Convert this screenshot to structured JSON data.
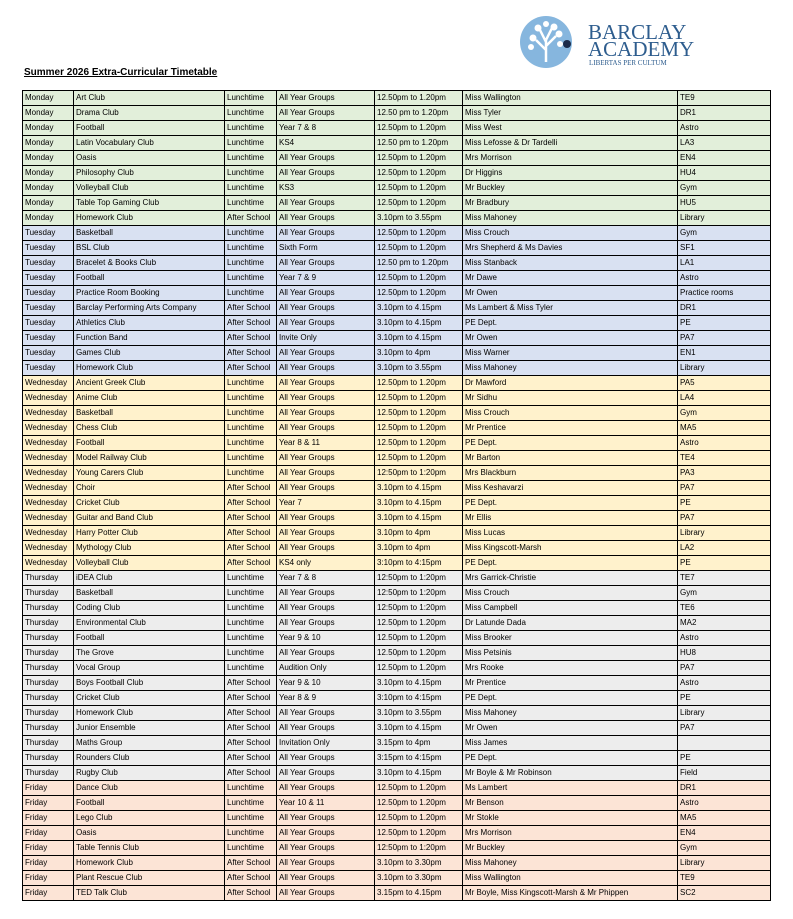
{
  "header": {
    "logo_lines": [
      "BARCLAY",
      "ACADEMY"
    ],
    "motto": "LIBERTAS PER CULTUM"
  },
  "title": "Summer 2026 Extra-Curricular Timetable",
  "table": {
    "rows": [
      [
        "Monday",
        "Art Club",
        "Lunchtime",
        "All Year Groups",
        "12.50pm to 1.20pm",
        "Miss Wallington",
        "TE9"
      ],
      [
        "Monday",
        "Drama Club",
        "Lunchtime",
        "All Year Groups",
        "12.50 pm to 1.20pm",
        "Miss Tyler",
        "DR1"
      ],
      [
        "Monday",
        "Football",
        "Lunchtime",
        "Year 7 & 8",
        "12.50pm to 1.20pm",
        "Miss West",
        "Astro"
      ],
      [
        "Monday",
        "Latin Vocabulary Club",
        "Lunchtime",
        "KS4",
        "12.50 pm to 1.20pm",
        "Miss Lefosse & Dr Tardelli",
        "LA3"
      ],
      [
        "Monday",
        "Oasis",
        "Lunchtime",
        "All Year Groups",
        "12.50pm to 1.20pm",
        "Mrs Morrison",
        "EN4"
      ],
      [
        "Monday",
        "Philosophy Club",
        "Lunchtime",
        "All Year Groups",
        "12.50pm to 1.20pm",
        "Dr Higgins",
        "HU4"
      ],
      [
        "Monday",
        "Volleyball Club",
        "Lunchtime",
        "KS3",
        "12.50pm to 1.20pm",
        "Mr Buckley",
        "Gym"
      ],
      [
        "Monday",
        "Table Top Gaming Club",
        "Lunchtime",
        "All Year Groups",
        "12.50pm to 1.20pm",
        "Mr Bradbury",
        "HU5"
      ],
      [
        "Monday",
        "Homework Club",
        "After School",
        "All Year Groups",
        "3.10pm to 3.55pm",
        "Miss Mahoney",
        "Library"
      ],
      [
        "Tuesday",
        "Basketball",
        "Lunchtime",
        "All Year Groups",
        "12.50pm to 1.20pm",
        "Miss Crouch",
        "Gym"
      ],
      [
        "Tuesday",
        "BSL Club",
        "Lunchtime",
        "Sixth Form",
        "12.50pm to 1.20pm",
        "Mrs Shepherd & Ms Davies",
        "SF1"
      ],
      [
        "Tuesday",
        "Bracelet & Books Club",
        "Lunchtime",
        "All Year Groups",
        "12.50 pm to 1.20pm",
        "Miss Stanback",
        "LA1"
      ],
      [
        "Tuesday",
        "Football",
        "Lunchtime",
        "Year 7 & 9",
        "12.50pm to 1.20pm",
        "Mr Dawe",
        "Astro"
      ],
      [
        "Tuesday",
        "Practice Room Booking",
        "Lunchtime",
        "All Year Groups",
        "12.50pm to 1.20pm",
        "Mr Owen",
        "Practice rooms"
      ],
      [
        "Tuesday",
        "Barclay Performing Arts Company",
        "After School",
        "All Year Groups",
        "3.10pm to 4.15pm",
        "Ms Lambert & Miss Tyler",
        "DR1"
      ],
      [
        "Tuesday",
        "Athletics Club",
        "After School",
        "All Year Groups",
        "3.10pm to 4.15pm",
        "PE Dept.",
        "PE"
      ],
      [
        "Tuesday",
        "Function Band",
        "After School",
        "Invite Only",
        "3.10pm to 4.15pm",
        "Mr Owen",
        "PA7"
      ],
      [
        "Tuesday",
        "Games Club",
        "After School",
        "All Year Groups",
        "3.10pm to 4pm",
        "Miss Warner",
        "EN1"
      ],
      [
        "Tuesday",
        "Homework Club",
        "After School",
        "All Year Groups",
        "3.10pm to 3.55pm",
        "Miss Mahoney",
        "Library"
      ],
      [
        "Wednesday",
        "Ancient Greek Club",
        "Lunchtime",
        "All Year Groups",
        "12.50pm to 1.20pm",
        "Dr Mawford",
        "PA5"
      ],
      [
        "Wednesday",
        "Anime Club",
        "Lunchtime",
        "All Year Groups",
        "12.50pm to 1.20pm",
        "Mr Sidhu",
        "LA4"
      ],
      [
        "Wednesday",
        "Basketball",
        "Lunchtime",
        "All Year Groups",
        "12.50pm to 1.20pm",
        "Miss Crouch",
        "Gym"
      ],
      [
        "Wednesday",
        "Chess Club",
        "Lunchtime",
        "All Year Groups",
        "12.50pm to 1.20pm",
        "Mr Prentice",
        "MA5"
      ],
      [
        "Wednesday",
        "Football",
        "Lunchtime",
        "Year 8 & 11",
        "12.50pm to 1.20pm",
        "PE Dept.",
        "Astro"
      ],
      [
        "Wednesday",
        "Model Railway Club",
        "Lunchtime",
        "All Year Groups",
        "12.50pm to 1.20pm",
        "Mr Barton",
        "TE4"
      ],
      [
        "Wednesday",
        "Young Carers Club",
        "Lunchtime",
        "All Year Groups",
        "12:50pm to 1:20pm",
        "Mrs Blackburn",
        "PA3"
      ],
      [
        "Wednesday",
        "Choir",
        "After School",
        "All Year Groups",
        "3.10pm to 4.15pm",
        "Miss Keshavarzi",
        "PA7"
      ],
      [
        "Wednesday",
        "Cricket Club",
        "After School",
        "Year 7",
        "3.10pm to 4.15pm",
        "PE Dept.",
        "PE"
      ],
      [
        "Wednesday",
        "Guitar and Band Club",
        "After School",
        "All Year Groups",
        "3.10pm to 4.15pm",
        "Mr Ellis",
        "PA7"
      ],
      [
        "Wednesday",
        "Harry Potter Club",
        "After School",
        "All Year Groups",
        "3.10pm to 4pm",
        "Miss Lucas",
        "Library"
      ],
      [
        "Wednesday",
        "Mythology Club",
        "After School",
        "All Year Groups",
        "3.10pm to 4pm",
        "Miss Kingscott-Marsh",
        "LA2"
      ],
      [
        "Wednesday",
        "Volleyball Club",
        "After School",
        "KS4 only",
        "3:10pm to 4:15pm",
        "PE Dept.",
        "PE"
      ],
      [
        "Thursday",
        "iDEA Club",
        "Lunchtime",
        "Year 7 & 8",
        "12:50pm to 1:20pm",
        "Mrs Garrick-Christie",
        "TE7"
      ],
      [
        "Thursday",
        "Basketball",
        "Lunchtime",
        "All Year Groups",
        "12:50pm to 1:20pm",
        "Miss Crouch",
        "Gym"
      ],
      [
        "Thursday",
        "Coding Club",
        "Lunchtime",
        "All Year Groups",
        "12:50pm to 1:20pm",
        "Miss Campbell",
        "TE6"
      ],
      [
        "Thursday",
        "Environmental Club",
        "Lunchtime",
        "All Year Groups",
        "12.50pm to 1.20pm",
        "Dr Latunde Dada",
        "MA2"
      ],
      [
        "Thursday",
        "Football",
        "Lunchtime",
        "Year 9 & 10",
        "12.50pm to 1.20pm",
        "Miss Brooker",
        "Astro"
      ],
      [
        "Thursday",
        "The Grove",
        "Lunchtime",
        "All Year Groups",
        "12.50pm to 1.20pm",
        "Miss Petsinis",
        "HU8"
      ],
      [
        "Thursday",
        "Vocal Group",
        "Lunchtime",
        "Audition Only",
        "12.50pm to 1.20pm",
        "Mrs Rooke",
        "PA7"
      ],
      [
        "Thursday",
        "Boys Football Club",
        "After School",
        "Year 9 & 10",
        "3.10pm to 4.15pm",
        "Mr Prentice",
        "Astro"
      ],
      [
        "Thursday",
        "Cricket Club",
        "After School",
        "Year 8 & 9",
        "3:10pm to 4:15pm",
        "PE Dept.",
        "PE"
      ],
      [
        "Thursday",
        "Homework Club",
        "After School",
        "All Year Groups",
        "3.10pm to 3.55pm",
        "Miss Mahoney",
        "Library"
      ],
      [
        "Thursday",
        "Junior Ensemble",
        "After School",
        "All Year Groups",
        "3.10pm to 4.15pm",
        "Mr Owen",
        "PA7"
      ],
      [
        "Thursday",
        "Maths Group",
        "After School",
        "Invitation Only",
        "3.15pm to 4pm",
        "Miss James",
        null
      ],
      [
        "Thursday",
        "Rounders Club",
        "After School",
        "All Year Groups",
        "3:15pm to 4:15pm",
        "PE Dept.",
        "PE"
      ],
      [
        "Thursday",
        "Rugby Club",
        "After School",
        "All Year Groups",
        "3.10pm to 4.15pm",
        "Mr Boyle & Mr Robinson",
        "Field"
      ],
      [
        "Friday",
        "Dance Club",
        "Lunchtime",
        "All Year Groups",
        "12.50pm to 1.20pm",
        "Ms Lambert",
        "DR1"
      ],
      [
        "Friday",
        "Football",
        "Lunchtime",
        "Year 10 & 11",
        "12.50pm to 1.20pm",
        "Mr Benson",
        "Astro"
      ],
      [
        "Friday",
        "Lego Club",
        "Lunchtime",
        "All Year Groups",
        "12.50pm to 1.20pm",
        "Mr Stokle",
        "MA5"
      ],
      [
        "Friday",
        "Oasis",
        "Lunchtime",
        "All Year Groups",
        "12.50pm to 1.20pm",
        "Mrs Morrison",
        "EN4"
      ],
      [
        "Friday",
        "Table Tennis Club",
        "Lunchtime",
        "All Year Groups",
        "12:50pm to 1:20pm",
        "Mr Buckley",
        "Gym"
      ],
      [
        "Friday",
        "Homework Club",
        "After School",
        "All Year Groups",
        "3.10pm to 3.30pm",
        "Miss Mahoney",
        "Library"
      ],
      [
        "Friday",
        "Plant Rescue Club",
        "After School",
        "All Year Groups",
        "3.10pm to 3.30pm",
        "Miss Wallington",
        "TE9"
      ],
      [
        "Friday",
        "TED Talk Club",
        "After School",
        "All Year Groups",
        "3.15pm to 4.15pm",
        "Mr Boyle, Miss Kingscott-Marsh & Mr Phippen",
        "SC2"
      ]
    ]
  }
}
